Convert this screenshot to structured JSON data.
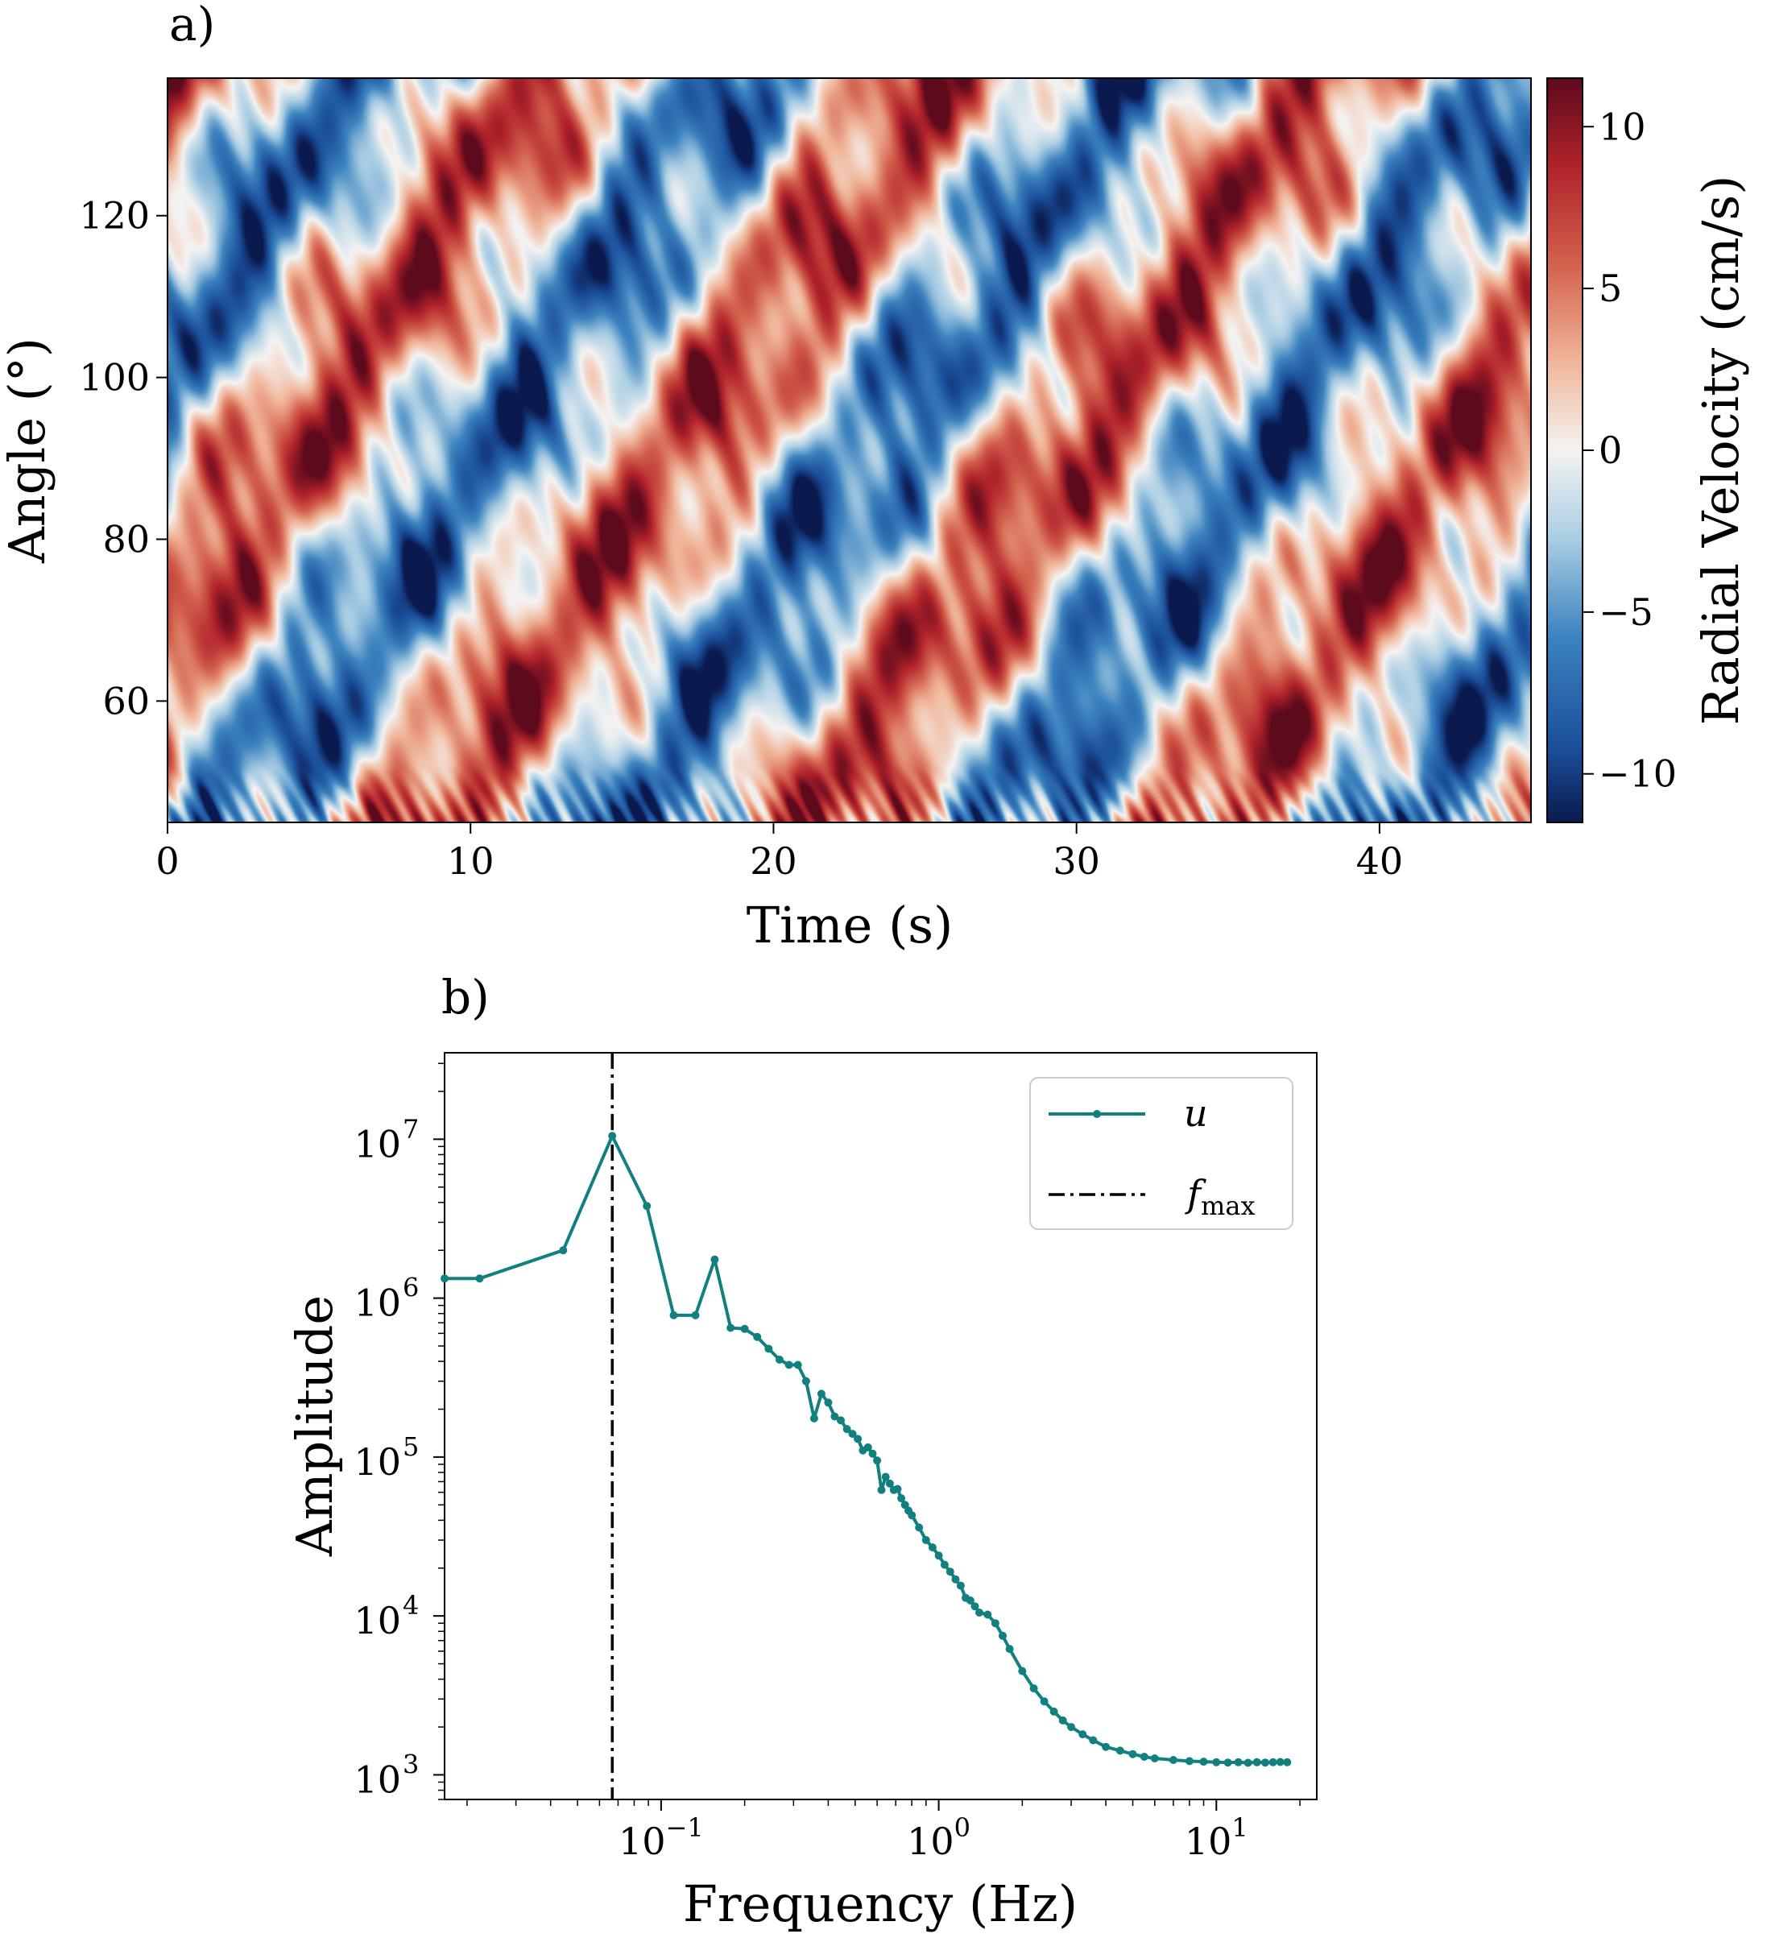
{
  "chart_data": [
    {
      "panel_label": "a)",
      "type": "heatmap",
      "description_values": "Space-time diagram of radial velocity; diagonal bands of positive (red) and negative (blue) velocity propagating with time.",
      "xlabel": "Time (s)",
      "ylabel": "Angle (°)",
      "xlim": [
        0,
        45
      ],
      "ylim": [
        45,
        137
      ],
      "xticks": [
        0,
        10,
        20,
        30,
        40
      ],
      "xtick_labels": [
        "0",
        "10",
        "20",
        "30",
        "40"
      ],
      "yticks": [
        60,
        80,
        100,
        120
      ],
      "ytick_labels": [
        "60",
        "80",
        "100",
        "120"
      ],
      "colorbar": {
        "label": "Radial Velocity (cm/s)",
        "range": [
          -11.5,
          11.5
        ],
        "ticks": [
          10,
          5,
          0,
          -5,
          -10
        ],
        "tick_labels": [
          "10",
          "5",
          "0",
          "−5",
          "−10"
        ],
        "colormap": "RdBu_r"
      },
      "bands": {
        "positive_centers_time_at_angle_90": [
          4,
          17,
          30,
          42
        ],
        "drift_slope_deg_per_s": 5.5
      }
    },
    {
      "panel_label": "b)",
      "type": "line",
      "xscale": "log",
      "yscale": "log",
      "xlabel": "Frequency (Hz)",
      "ylabel": "Amplitude",
      "xlim": [
        0.0166,
        23
      ],
      "ylim": [
        700,
        35000000
      ],
      "xticks": [
        0.1,
        1,
        10
      ],
      "xtick_labels": [
        "10",
        "10",
        "10"
      ],
      "xtick_exponents": [
        "−1",
        "0",
        "1"
      ],
      "yticks": [
        1000,
        10000,
        100000,
        1000000,
        10000000
      ],
      "ytick_labels": [
        "10",
        "10",
        "10",
        "10",
        "10"
      ],
      "ytick_exponents": [
        "3",
        "4",
        "5",
        "6",
        "7"
      ],
      "series": [
        {
          "name": "u",
          "color": "#11807f",
          "points": [
            [
              0.0166,
              1330000
            ],
            [
              0.0222,
              1330000
            ],
            [
              0.0444,
              2000000
            ],
            [
              0.0667,
              10500000
            ],
            [
              0.0889,
              3800000
            ],
            [
              0.111,
              780000
            ],
            [
              0.133,
              780000
            ],
            [
              0.156,
              1750000
            ],
            [
              0.178,
              650000
            ],
            [
              0.2,
              640000
            ],
            [
              0.222,
              570000
            ],
            [
              0.244,
              480000
            ],
            [
              0.267,
              410000
            ],
            [
              0.289,
              380000
            ],
            [
              0.311,
              380000
            ],
            [
              0.333,
              300000
            ],
            [
              0.356,
              175000
            ],
            [
              0.378,
              250000
            ],
            [
              0.4,
              220000
            ],
            [
              0.422,
              180000
            ],
            [
              0.444,
              170000
            ],
            [
              0.467,
              150000
            ],
            [
              0.489,
              140000
            ],
            [
              0.511,
              130000
            ],
            [
              0.533,
              110000
            ],
            [
              0.556,
              115000
            ],
            [
              0.578,
              105000
            ],
            [
              0.6,
              95000
            ],
            [
              0.622,
              62000
            ],
            [
              0.644,
              75000
            ],
            [
              0.667,
              68000
            ],
            [
              0.689,
              62000
            ],
            [
              0.711,
              63000
            ],
            [
              0.733,
              55000
            ],
            [
              0.756,
              50000
            ],
            [
              0.778,
              46000
            ],
            [
              0.8,
              43000
            ],
            [
              0.85,
              36000
            ],
            [
              0.9,
              30000
            ],
            [
              0.95,
              27000
            ],
            [
              1.0,
              24000
            ],
            [
              1.05,
              21000
            ],
            [
              1.1,
              19000
            ],
            [
              1.15,
              17000
            ],
            [
              1.2,
              15500
            ],
            [
              1.25,
              13000
            ],
            [
              1.3,
              12500
            ],
            [
              1.35,
              11500
            ],
            [
              1.4,
              10500
            ],
            [
              1.5,
              10200
            ],
            [
              1.6,
              9000
            ],
            [
              1.7,
              7500
            ],
            [
              1.8,
              6200
            ],
            [
              2.0,
              4500
            ],
            [
              2.2,
              3500
            ],
            [
              2.4,
              2900
            ],
            [
              2.6,
              2500
            ],
            [
              2.8,
              2200
            ],
            [
              3.0,
              2000
            ],
            [
              3.3,
              1800
            ],
            [
              3.6,
              1650
            ],
            [
              4.0,
              1500
            ],
            [
              4.5,
              1420
            ],
            [
              5.0,
              1350
            ],
            [
              5.5,
              1300
            ],
            [
              6.0,
              1270
            ],
            [
              7.0,
              1240
            ],
            [
              8.0,
              1220
            ],
            [
              9.0,
              1210
            ],
            [
              10.0,
              1200
            ],
            [
              11.0,
              1195
            ],
            [
              12.0,
              1200
            ],
            [
              13.0,
              1190
            ],
            [
              14.0,
              1200
            ],
            [
              15.0,
              1195
            ],
            [
              16.0,
              1200
            ],
            [
              17.0,
              1205
            ],
            [
              18.0,
              1200
            ]
          ]
        }
      ],
      "vline": {
        "name": "f",
        "subscript": "max",
        "x": 0.0667,
        "style": "dash-dot",
        "color": "#000000"
      },
      "legend": {
        "position": "upper right",
        "entries": [
          {
            "label": "u",
            "style": "line-marker",
            "color": "#11807f"
          },
          {
            "label": "f",
            "subscript": "max",
            "style": "dash-dot",
            "color": "#000000"
          }
        ]
      }
    }
  ]
}
